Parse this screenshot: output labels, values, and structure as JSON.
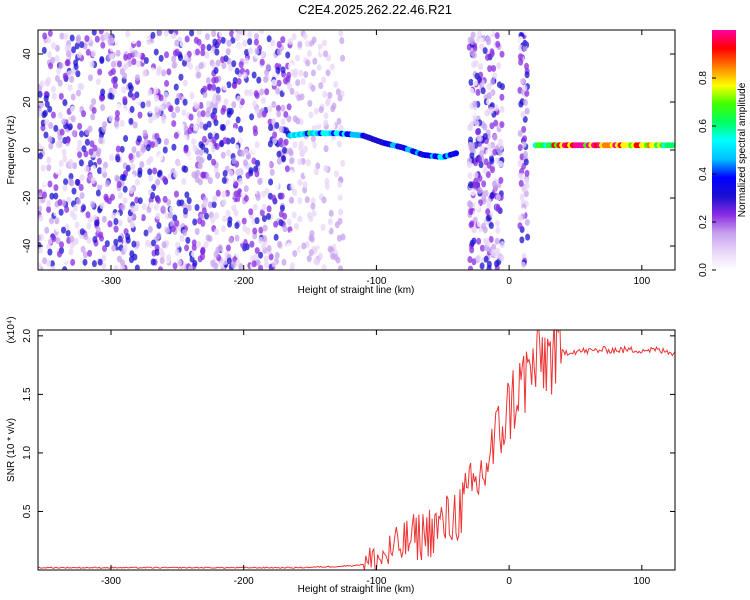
{
  "title": "C2E4.2025.262.22.46.R21",
  "chart_data": [
    {
      "type": "heatmap",
      "xlabel": "Height of straight line (km)",
      "ylabel": "Frequency (Hz)",
      "xlim": [
        -355,
        125
      ],
      "ylim": [
        -50,
        50
      ],
      "xticks": [
        -300,
        -200,
        -100,
        0,
        100
      ],
      "xtick_labels": [
        "-300",
        "-200",
        "-100",
        "0",
        "100"
      ],
      "yticks": [
        -40,
        -20,
        0,
        20,
        40
      ],
      "ytick_labels": [
        "-40",
        "-20",
        "0",
        "20",
        "40"
      ],
      "colorbar": {
        "label": "Normalized spectral amplitude",
        "range": [
          0,
          1
        ],
        "ticks": [
          0,
          0.2,
          0.4,
          0.6,
          0.8
        ],
        "tick_labels": [
          "0.0",
          "0.2",
          "0.4",
          "0.6",
          "0.8"
        ],
        "colormap": [
          "#ffffff",
          "#e8d6f7",
          "#c6a1ee",
          "#8a2be2",
          "#1a0fd0",
          "#0000ff",
          "#00c0ff",
          "#00ffff",
          "#00ff60",
          "#40ff00",
          "#ffff00",
          "#ff8000",
          "#ff0000",
          "#ff00a0"
        ]
      },
      "signal_trace": [
        {
          "x": -165,
          "f": 6,
          "amp": 0.45
        },
        {
          "x": -150,
          "f": 7,
          "amp": 0.5
        },
        {
          "x": -130,
          "f": 7,
          "amp": 0.45
        },
        {
          "x": -110,
          "f": 6,
          "amp": 0.4
        },
        {
          "x": -95,
          "f": 3,
          "amp": 0.35
        },
        {
          "x": -80,
          "f": 1,
          "amp": 0.4
        },
        {
          "x": -65,
          "f": -2,
          "amp": 0.4
        },
        {
          "x": -50,
          "f": -3,
          "amp": 0.45
        },
        {
          "x": -38,
          "f": -1,
          "amp": 0.4
        },
        {
          "x": 20,
          "f": 2,
          "amp": 0.6
        },
        {
          "x": 40,
          "f": 2,
          "amp": 0.85
        },
        {
          "x": 70,
          "f": 2,
          "amp": 0.9
        },
        {
          "x": 100,
          "f": 2,
          "amp": 0.8
        },
        {
          "x": 125,
          "f": 2,
          "amp": 0.6
        }
      ]
    },
    {
      "type": "line",
      "xlabel": "Height of straight line (km)",
      "ylabel": "SNR (10 * v/v)",
      "yscale_label": "(x10⁴)",
      "xlim": [
        -355,
        125
      ],
      "ylim": [
        0,
        2.05
      ],
      "xticks": [
        -300,
        -200,
        -100,
        0,
        100
      ],
      "xtick_labels": [
        "-300",
        "-200",
        "-100",
        "0",
        "100"
      ],
      "yticks": [
        0.5,
        1.0,
        1.5,
        2.0
      ],
      "ytick_labels": [
        "0.5",
        "1.0",
        "1.5",
        "2.0"
      ],
      "color": "#ee3333",
      "series": [
        {
          "x": [
            -355,
            -320,
            -280,
            -240,
            -200,
            -160,
            -130,
            -115,
            -105,
            -100,
            -95,
            -90,
            -85,
            -80,
            -75,
            -70,
            -65,
            -60,
            -55,
            -50,
            -45,
            -40,
            -35,
            -30,
            -25,
            -20,
            -15,
            -10,
            -5,
            0,
            5,
            10,
            15,
            20,
            25,
            30,
            35,
            40,
            50,
            60,
            70,
            80,
            90,
            100,
            110,
            115,
            120,
            125
          ],
          "y": [
            0.02,
            0.02,
            0.02,
            0.02,
            0.02,
            0.02,
            0.03,
            0.04,
            0.06,
            0.08,
            0.11,
            0.15,
            0.18,
            0.22,
            0.26,
            0.28,
            0.3,
            0.33,
            0.36,
            0.38,
            0.42,
            0.48,
            0.55,
            0.63,
            0.72,
            0.82,
            0.95,
            1.1,
            1.25,
            1.38,
            1.5,
            1.6,
            1.68,
            1.75,
            1.8,
            1.83,
            1.85,
            1.86,
            1.87,
            1.87,
            1.88,
            1.88,
            1.88,
            1.88,
            1.88,
            1.87,
            1.86,
            1.86
          ]
        }
      ]
    }
  ]
}
